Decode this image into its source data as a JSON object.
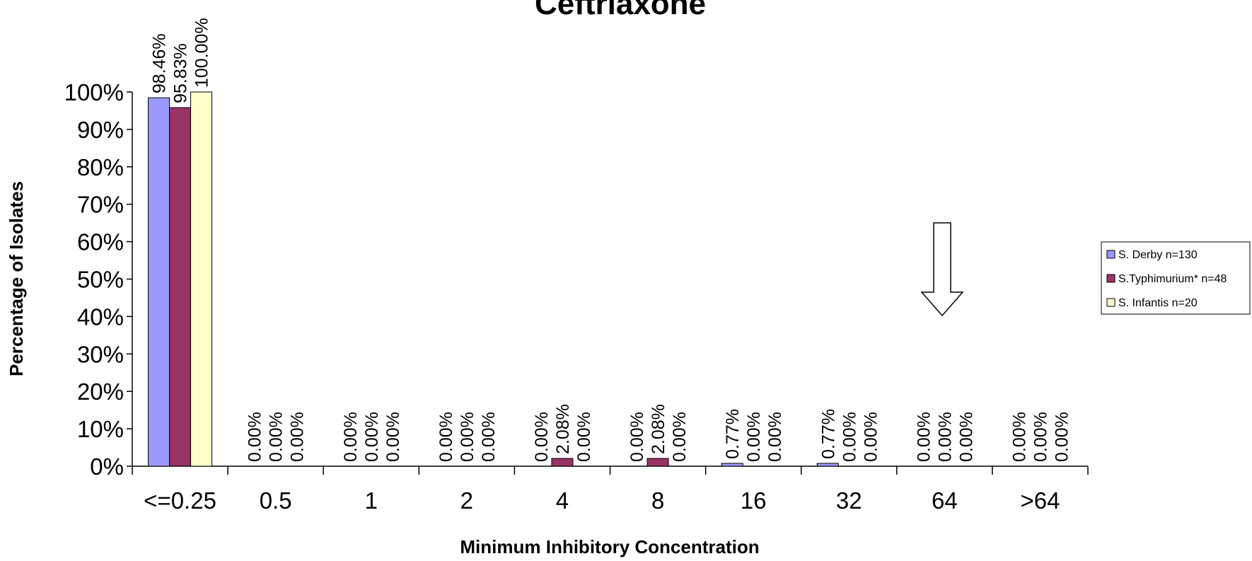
{
  "chart_data": {
    "type": "bar",
    "title": "Ceftriaxone",
    "x_label": "Minimum Inhibitory Concentration",
    "y_label": "Percentage of Isolates",
    "categories": [
      "<=0.25",
      "0.5",
      "1",
      "2",
      "4",
      "8",
      "16",
      "32",
      "64",
      ">64"
    ],
    "series": [
      {
        "name": "S. Derby n=130",
        "color": "#9999ff",
        "values": [
          98.46,
          0,
          0,
          0,
          0,
          0,
          0.77,
          0.77,
          0,
          0
        ],
        "value_labels": [
          "98.46%",
          "0.00%",
          "0.00%",
          "0.00%",
          "0.00%",
          "0.00%",
          "0.77%",
          "0.77%",
          "0.00%",
          "0.00%"
        ]
      },
      {
        "name": "S.Typhimurium* n=48",
        "color": "#993366",
        "values": [
          95.83,
          0,
          0,
          0,
          2.08,
          2.08,
          0,
          0,
          0,
          0
        ],
        "value_labels": [
          "95.83%",
          "0.00%",
          "0.00%",
          "0.00%",
          "2.08%",
          "2.08%",
          "0.00%",
          "0.00%",
          "0.00%",
          "0.00%"
        ]
      },
      {
        "name": "S. Infantis n=20",
        "color": "#ffffcc",
        "values": [
          100,
          0,
          0,
          0,
          0,
          0,
          0,
          0,
          0,
          0
        ],
        "value_labels": [
          "100.00%",
          "0.00%",
          "0.00%",
          "0.00%",
          "0.00%",
          "0.00%",
          "0.00%",
          "0.00%",
          "0.00%",
          "0.00%"
        ]
      }
    ],
    "ylim": [
      0,
      100
    ],
    "yticks": [
      {
        "value": 0,
        "label": "0%"
      },
      {
        "value": 10,
        "label": "10%"
      },
      {
        "value": 20,
        "label": "20%"
      },
      {
        "value": 30,
        "label": "30%"
      },
      {
        "value": 40,
        "label": "40%"
      },
      {
        "value": 50,
        "label": "50%"
      },
      {
        "value": 60,
        "label": "60%"
      },
      {
        "value": 70,
        "label": "70%"
      },
      {
        "value": 80,
        "label": "80%"
      },
      {
        "value": 90,
        "label": "90%"
      },
      {
        "value": 100,
        "label": "100%"
      }
    ],
    "grid": false,
    "legend": "right"
  }
}
